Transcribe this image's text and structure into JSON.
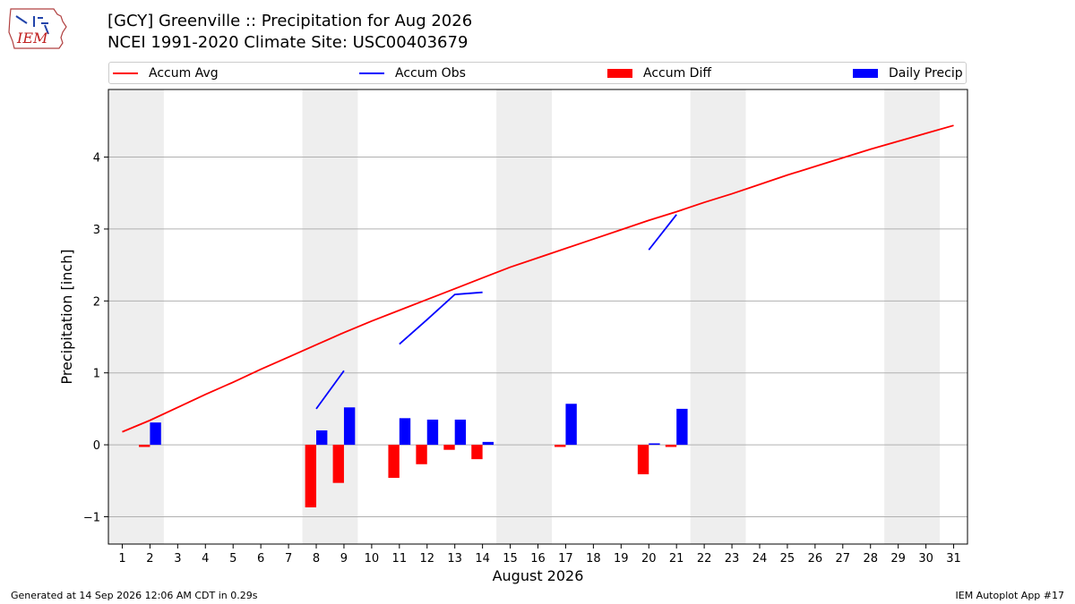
{
  "header": {
    "logo_text": "IEM",
    "title_line1": "[GCY] Greenville :: Precipitation for Aug 2026",
    "title_line2": "NCEI 1991-2020 Climate Site: USC00403679"
  },
  "legend": {
    "items": [
      {
        "label": "Accum Avg",
        "kind": "line",
        "color": "#ff0000"
      },
      {
        "label": "Accum Obs",
        "kind": "line",
        "color": "#0000ff"
      },
      {
        "label": "Accum Diff",
        "kind": "bar",
        "color": "#ff0000"
      },
      {
        "label": "Daily Precip",
        "kind": "bar",
        "color": "#0000ff"
      }
    ]
  },
  "footer": {
    "left": "Generated at 14 Sep 2026 12:06 AM CDT in 0.29s",
    "right": "IEM Autoplot App #17"
  },
  "chart_data": {
    "type": "bar",
    "xlabel": "August 2026",
    "ylabel": "Precipitation [inch]",
    "xlim": [
      0.5,
      31.5
    ],
    "ylim": [
      -1.38,
      4.94
    ],
    "x_ticks": [
      1,
      2,
      3,
      4,
      5,
      6,
      7,
      8,
      9,
      10,
      11,
      12,
      13,
      14,
      15,
      16,
      17,
      18,
      19,
      20,
      21,
      22,
      23,
      24,
      25,
      26,
      27,
      28,
      29,
      30,
      31
    ],
    "y_ticks": [
      -1,
      0,
      1,
      2,
      3,
      4
    ],
    "y_tick_labels": [
      "−1",
      "0",
      "1",
      "2",
      "3",
      "4"
    ],
    "grid": "horizontal",
    "weekend_shading": [
      [
        0.5,
        2.5
      ],
      [
        7.5,
        9.5
      ],
      [
        14.5,
        16.5
      ],
      [
        21.5,
        23.5
      ],
      [
        28.5,
        30.5
      ]
    ],
    "series": [
      {
        "name": "Accum Avg",
        "type": "line",
        "color": "#ff0000",
        "x": [
          1,
          2,
          3,
          4,
          5,
          6,
          7,
          8,
          9,
          10,
          11,
          12,
          13,
          14,
          15,
          16,
          17,
          18,
          19,
          20,
          21,
          22,
          23,
          24,
          25,
          26,
          27,
          28,
          29,
          30,
          31
        ],
        "values": [
          0.18,
          0.34,
          0.52,
          0.7,
          0.87,
          1.05,
          1.22,
          1.39,
          1.56,
          1.72,
          1.87,
          2.02,
          2.17,
          2.32,
          2.47,
          2.6,
          2.73,
          2.86,
          2.99,
          3.12,
          3.24,
          3.37,
          3.49,
          3.62,
          3.75,
          3.87,
          3.99,
          4.11,
          4.22,
          4.33,
          4.44
        ]
      },
      {
        "name": "Accum Obs",
        "type": "line",
        "color": "#0000ff",
        "segments": [
          {
            "x": [
              8,
              9
            ],
            "values": [
              0.5,
              1.03
            ]
          },
          {
            "x": [
              11,
              12,
              13,
              14
            ],
            "values": [
              1.4,
              1.74,
              2.09,
              2.12
            ]
          },
          {
            "x": [
              20,
              21
            ],
            "values": [
              2.71,
              3.2
            ]
          }
        ]
      },
      {
        "name": "Accum Diff",
        "type": "bar",
        "color": "#ff0000",
        "x": [
          2,
          8,
          9,
          11,
          12,
          13,
          14,
          17,
          20,
          21
        ],
        "values": [
          -0.03,
          -0.87,
          -0.53,
          -0.46,
          -0.27,
          -0.07,
          -0.2,
          -0.03,
          -0.41,
          -0.03
        ]
      },
      {
        "name": "Daily Precip",
        "type": "bar",
        "color": "#0000ff",
        "x": [
          2,
          8,
          9,
          11,
          12,
          13,
          14,
          17,
          20,
          21
        ],
        "values": [
          0.31,
          0.2,
          0.52,
          0.37,
          0.35,
          0.35,
          0.04,
          0.57,
          0.02,
          0.5
        ]
      }
    ]
  }
}
